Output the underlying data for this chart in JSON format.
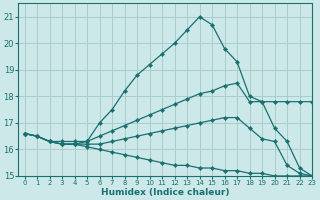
{
  "background_color": "#cce8e8",
  "grid_color": "#aacccc",
  "line_color": "#1a7070",
  "xlabel": "Humidex (Indice chaleur)",
  "ylim": [
    15,
    21.5
  ],
  "xlim": [
    -0.5,
    23
  ],
  "yticks": [
    15,
    16,
    17,
    18,
    19,
    20,
    21
  ],
  "xticks": [
    0,
    1,
    2,
    3,
    4,
    5,
    6,
    7,
    8,
    9,
    10,
    11,
    12,
    13,
    14,
    15,
    16,
    17,
    18,
    19,
    20,
    21,
    22,
    23
  ],
  "lines": [
    {
      "x": [
        0,
        1,
        2,
        3,
        4,
        5,
        6,
        7,
        8,
        9,
        10,
        11,
        12,
        13,
        14,
        15,
        16,
        17,
        18,
        19,
        20,
        21,
        22,
        23
      ],
      "y": [
        16.6,
        16.5,
        16.3,
        16.3,
        16.3,
        16.3,
        17.0,
        17.5,
        18.2,
        18.8,
        19.2,
        19.6,
        20.0,
        20.5,
        21.0,
        20.7,
        19.8,
        19.3,
        18.0,
        17.8,
        16.8,
        16.3,
        15.3,
        15.0
      ]
    },
    {
      "x": [
        0,
        1,
        2,
        3,
        4,
        5,
        6,
        7,
        8,
        9,
        10,
        11,
        12,
        13,
        14,
        15,
        16,
        17,
        18,
        19,
        20,
        21,
        22,
        23
      ],
      "y": [
        16.6,
        16.5,
        16.3,
        16.2,
        16.2,
        16.3,
        16.5,
        16.7,
        16.9,
        17.1,
        17.3,
        17.5,
        17.7,
        17.9,
        18.1,
        18.2,
        18.4,
        18.5,
        17.8,
        17.8,
        17.8,
        17.8,
        17.8,
        17.8
      ]
    },
    {
      "x": [
        0,
        1,
        2,
        3,
        4,
        5,
        6,
        7,
        8,
        9,
        10,
        11,
        12,
        13,
        14,
        15,
        16,
        17,
        18,
        19,
        20,
        21,
        22,
        23
      ],
      "y": [
        16.6,
        16.5,
        16.3,
        16.2,
        16.2,
        16.2,
        16.2,
        16.3,
        16.4,
        16.5,
        16.6,
        16.7,
        16.8,
        16.9,
        17.0,
        17.1,
        17.2,
        17.2,
        16.8,
        16.4,
        16.3,
        15.4,
        15.1,
        15.0
      ]
    },
    {
      "x": [
        0,
        1,
        2,
        3,
        4,
        5,
        6,
        7,
        8,
        9,
        10,
        11,
        12,
        13,
        14,
        15,
        16,
        17,
        18,
        19,
        20,
        21,
        22,
        23
      ],
      "y": [
        16.6,
        16.5,
        16.3,
        16.2,
        16.2,
        16.1,
        16.0,
        15.9,
        15.8,
        15.7,
        15.6,
        15.5,
        15.4,
        15.4,
        15.3,
        15.3,
        15.2,
        15.2,
        15.1,
        15.1,
        15.0,
        15.0,
        15.0,
        15.0
      ]
    }
  ]
}
